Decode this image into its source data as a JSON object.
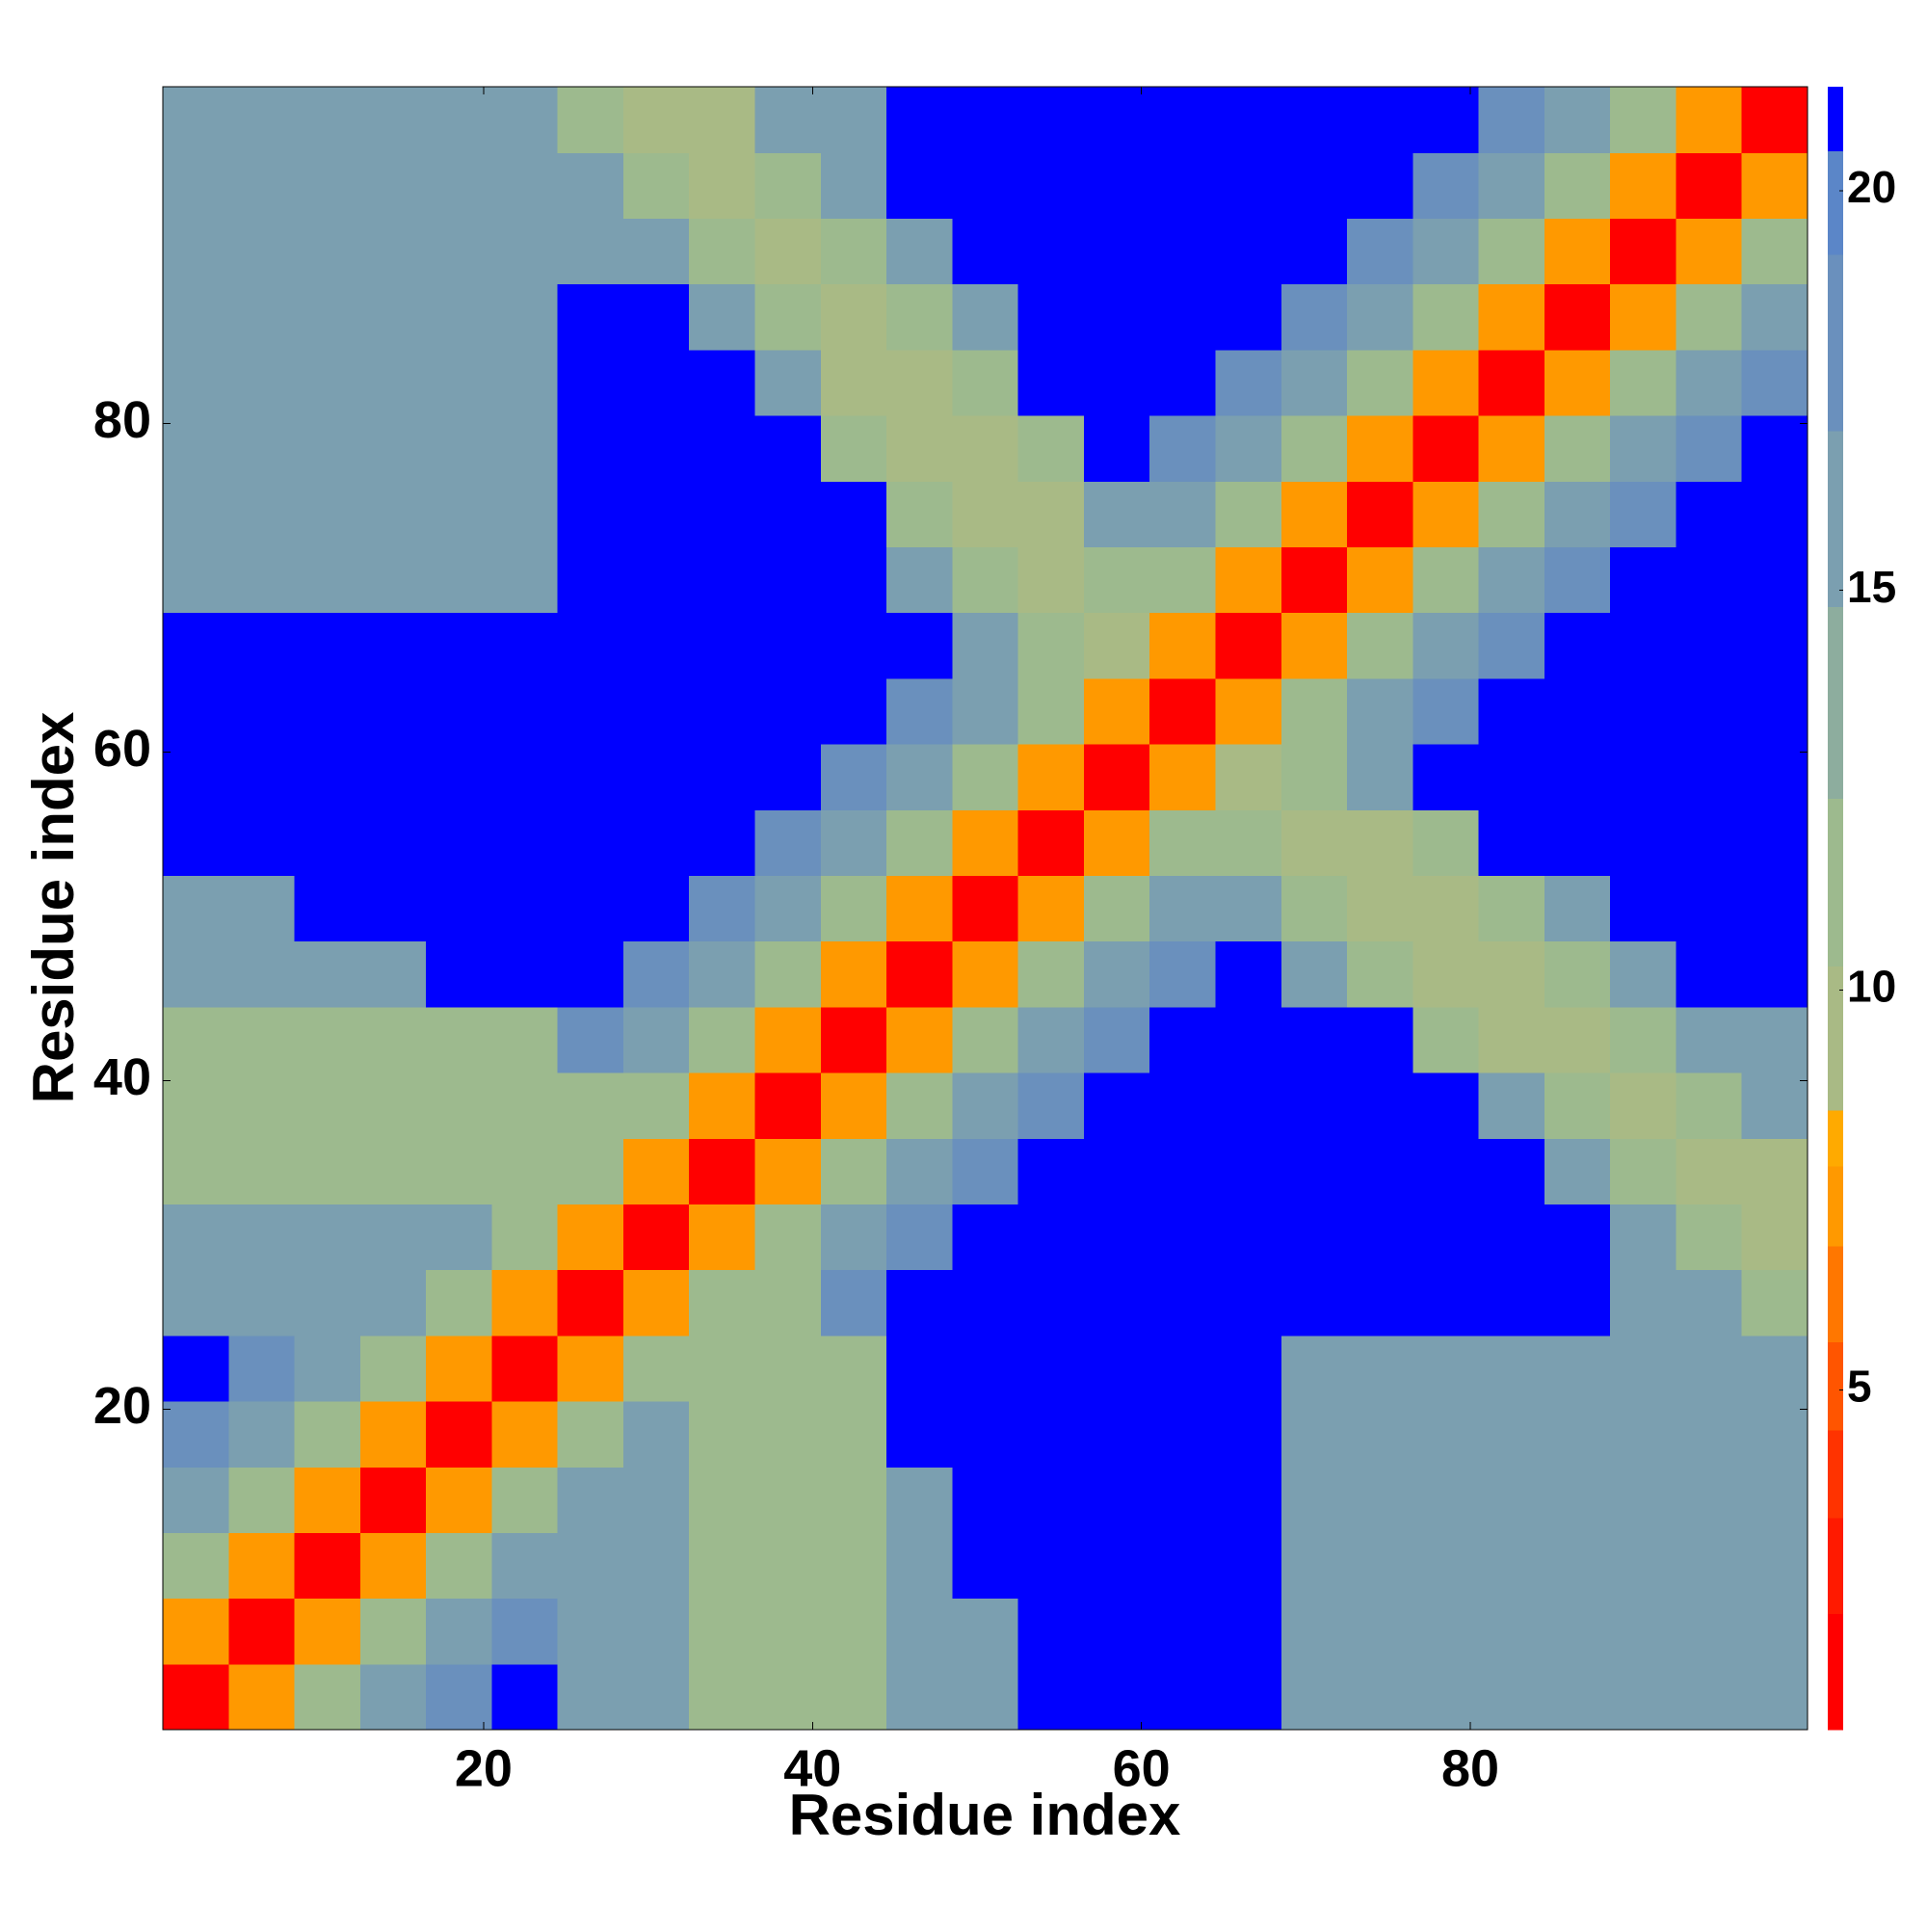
{
  "chart_data": {
    "type": "heatmap",
    "xlabel": "Residue index",
    "ylabel": "Residue index",
    "x": [
      2.5,
      6.5,
      10.5,
      14.5,
      18.5,
      22.5,
      26.5,
      30.5,
      34.5,
      38.5,
      42.5,
      46.5,
      50.5,
      54.5,
      58.5,
      62.5,
      66.5,
      70.5,
      74.5,
      78.5,
      82.5,
      86.5,
      90.5,
      94.5,
      98.5
    ],
    "y": [
      2.5,
      6.5,
      10.5,
      14.5,
      18.5,
      22.5,
      26.5,
      30.5,
      34.5,
      38.5,
      42.5,
      46.5,
      50.5,
      54.5,
      58.5,
      62.5,
      66.5,
      70.5,
      74.5,
      78.5,
      82.5,
      86.5,
      90.5,
      94.5,
      98.5
    ],
    "z": [
      [
        2,
        7,
        11,
        15,
        18,
        21,
        15,
        15,
        12,
        12,
        12,
        15,
        15,
        21,
        21,
        21,
        21,
        16,
        16,
        16,
        16,
        16,
        15,
        15,
        15
      ],
      [
        7,
        2,
        7,
        11,
        15,
        18,
        15,
        15,
        12,
        12,
        12,
        15,
        15,
        21,
        21,
        21,
        21,
        16,
        16,
        16,
        16,
        16,
        15,
        15,
        15
      ],
      [
        11,
        7,
        2,
        7,
        11,
        15,
        15,
        15,
        12,
        12,
        12,
        15,
        21,
        21,
        21,
        21,
        21,
        16,
        16,
        16,
        16,
        16,
        15,
        15,
        15
      ],
      [
        15,
        11,
        7,
        2,
        7,
        11,
        15,
        15,
        12,
        12,
        12,
        15,
        21,
        21,
        21,
        21,
        21,
        16,
        16,
        16,
        16,
        16,
        15,
        15,
        15
      ],
      [
        18,
        15,
        11,
        7,
        2,
        7,
        11,
        15,
        12,
        12,
        12,
        21,
        21,
        21,
        21,
        21,
        21,
        16,
        16,
        16,
        16,
        16,
        15,
        15,
        15
      ],
      [
        21,
        18,
        15,
        11,
        7,
        2,
        7,
        11,
        12,
        12,
        12,
        21,
        21,
        21,
        21,
        21,
        21,
        16,
        16,
        16,
        16,
        16,
        15,
        15,
        15
      ],
      [
        15,
        15,
        15,
        15,
        11,
        7,
        2,
        7,
        11,
        12,
        18,
        21,
        21,
        21,
        21,
        21,
        21,
        21,
        21,
        21,
        21,
        21,
        15,
        15,
        12
      ],
      [
        15,
        15,
        15,
        15,
        15,
        11,
        7,
        2,
        7,
        11,
        15,
        18,
        21,
        21,
        21,
        21,
        21,
        21,
        21,
        21,
        21,
        21,
        15,
        12,
        10
      ],
      [
        12,
        12,
        12,
        12,
        12,
        12,
        11,
        7,
        2,
        7,
        11,
        15,
        18,
        21,
        21,
        21,
        21,
        21,
        21,
        21,
        21,
        15,
        12,
        10,
        10
      ],
      [
        12,
        12,
        12,
        12,
        12,
        12,
        12,
        11,
        7,
        2,
        7,
        11,
        15,
        18,
        21,
        21,
        21,
        21,
        21,
        21,
        15,
        12,
        10,
        12,
        15
      ],
      [
        12,
        12,
        12,
        12,
        12,
        12,
        18,
        15,
        11,
        7,
        2,
        7,
        11,
        15,
        18,
        21,
        21,
        21,
        21,
        12,
        10,
        10,
        12,
        15,
        15
      ],
      [
        15,
        15,
        15,
        15,
        21,
        21,
        21,
        18,
        15,
        11,
        7,
        2,
        7,
        11,
        15,
        18,
        21,
        15,
        12,
        10,
        10,
        12,
        15,
        21,
        21
      ],
      [
        15,
        15,
        21,
        21,
        21,
        21,
        21,
        21,
        18,
        15,
        11,
        7,
        2,
        7,
        11,
        15,
        15,
        12,
        10,
        10,
        12,
        15,
        21,
        21,
        21
      ],
      [
        21,
        21,
        21,
        21,
        21,
        21,
        21,
        21,
        21,
        18,
        15,
        11,
        7,
        2,
        7,
        11,
        12,
        10,
        10,
        12,
        21,
        21,
        21,
        21,
        21
      ],
      [
        21,
        21,
        21,
        21,
        21,
        21,
        21,
        21,
        21,
        21,
        18,
        15,
        11,
        7,
        2,
        7,
        10,
        12,
        15,
        21,
        21,
        21,
        21,
        21,
        21
      ],
      [
        21,
        21,
        21,
        21,
        21,
        21,
        21,
        21,
        21,
        21,
        21,
        18,
        15,
        11,
        7,
        2,
        7,
        11,
        15,
        18,
        21,
        21,
        21,
        21,
        21
      ],
      [
        21,
        21,
        21,
        21,
        21,
        21,
        21,
        21,
        21,
        21,
        21,
        21,
        15,
        12,
        10,
        7,
        2,
        7,
        11,
        15,
        18,
        21,
        21,
        21,
        21
      ],
      [
        16,
        16,
        16,
        16,
        16,
        16,
        21,
        21,
        21,
        21,
        21,
        15,
        12,
        10,
        12,
        11,
        7,
        2,
        7,
        11,
        15,
        18,
        21,
        21,
        21
      ],
      [
        16,
        16,
        16,
        16,
        16,
        16,
        21,
        21,
        21,
        21,
        21,
        12,
        10,
        10,
        15,
        15,
        11,
        7,
        2,
        7,
        11,
        15,
        18,
        21,
        21
      ],
      [
        16,
        16,
        16,
        16,
        16,
        16,
        21,
        21,
        21,
        21,
        12,
        10,
        10,
        12,
        21,
        18,
        15,
        11,
        7,
        2,
        7,
        11,
        15,
        18,
        21
      ],
      [
        16,
        16,
        16,
        16,
        16,
        16,
        21,
        21,
        21,
        15,
        10,
        10,
        12,
        21,
        21,
        21,
        18,
        15,
        11,
        7,
        2,
        7,
        11,
        15,
        18
      ],
      [
        16,
        16,
        16,
        16,
        16,
        16,
        21,
        21,
        15,
        12,
        10,
        12,
        15,
        21,
        21,
        21,
        21,
        18,
        15,
        11,
        7,
        2,
        7,
        11,
        15
      ],
      [
        15,
        15,
        15,
        15,
        15,
        15,
        15,
        15,
        12,
        10,
        12,
        15,
        21,
        21,
        21,
        21,
        21,
        21,
        18,
        15,
        11,
        7,
        2,
        7,
        11
      ],
      [
        15,
        15,
        15,
        15,
        15,
        15,
        15,
        12,
        10,
        12,
        15,
        21,
        21,
        21,
        21,
        21,
        21,
        21,
        21,
        18,
        15,
        11,
        7,
        2,
        7
      ],
      [
        15,
        15,
        15,
        15,
        15,
        15,
        12,
        10,
        10,
        15,
        15,
        21,
        21,
        21,
        21,
        21,
        21,
        21,
        21,
        21,
        18,
        15,
        11,
        7,
        2
      ]
    ],
    "xlim": [
      0.5,
      100.5
    ],
    "ylim": [
      0.5,
      100.5
    ],
    "xticks": [
      20,
      40,
      60,
      80
    ],
    "yticks": [
      20,
      40,
      60,
      80
    ],
    "colorbar": {
      "lim": [
        0.75,
        21.3
      ],
      "ticks": [
        5,
        10,
        15,
        20
      ],
      "levels": [
        0.75,
        2.2,
        3.4,
        4.5,
        5.6,
        6.8,
        7.8,
        8.5,
        10.3,
        12.4,
        14.8,
        17,
        19.2,
        20.5,
        21.3
      ],
      "colors": [
        "#ff0000",
        "#ff1a00",
        "#ff3300",
        "#ff5500",
        "#ff7700",
        "#ff9900",
        "#ffaa00",
        "#a9ba85",
        "#9dba8e",
        "#8dad9e",
        "#7b9fb0",
        "#6a90bd",
        "#5b86c8",
        "#0000ff"
      ]
    }
  }
}
